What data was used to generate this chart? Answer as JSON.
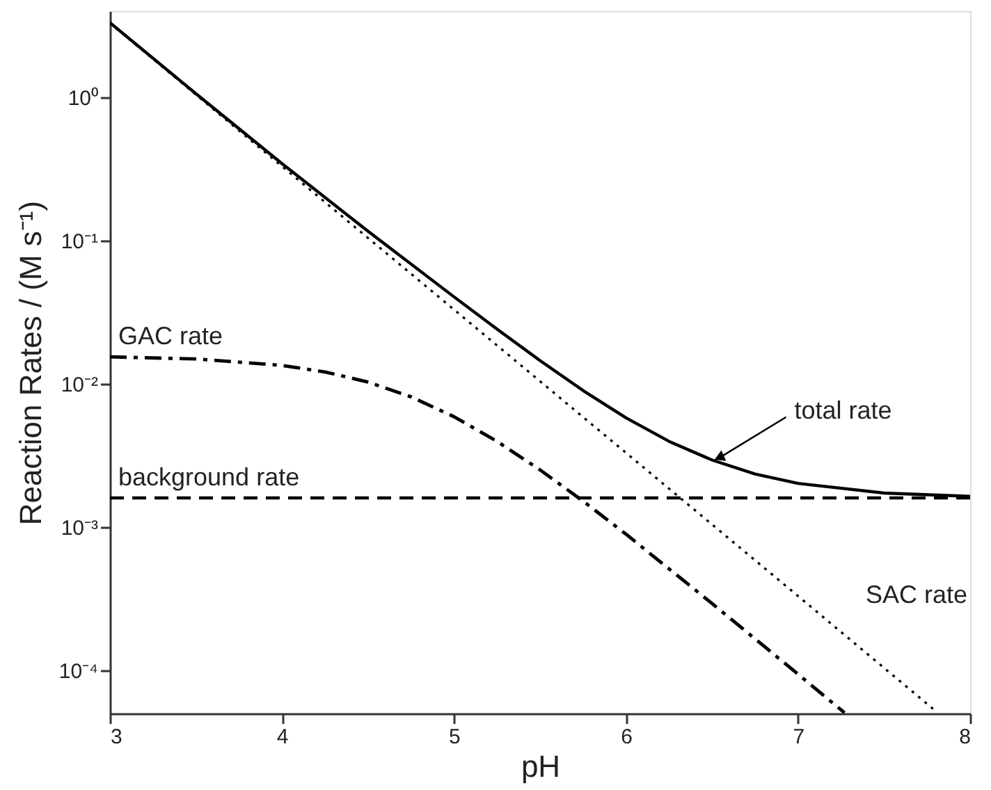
{
  "chart_data": {
    "type": "line",
    "xlabel": "pH",
    "ylabel": "Reaction Rates / (M s⁻¹)",
    "log": "y",
    "grid": false,
    "marker": "none",
    "xlim": [
      3,
      8
    ],
    "xticks": [
      3,
      4,
      5,
      6,
      7,
      8
    ],
    "ylim": [
      5e-05,
      4
    ],
    "yticks": [
      {
        "value": 0.0001,
        "label": "10⁻⁴"
      },
      {
        "value": 0.001,
        "label": "10⁻³"
      },
      {
        "value": 0.01,
        "label": "10⁻²"
      },
      {
        "value": 0.1,
        "label": "10⁻¹"
      },
      {
        "value": 1,
        "label": "10⁰"
      }
    ],
    "series": [
      {
        "name": "total rate",
        "color": "#000000",
        "line_style": "solid",
        "x": [
          3,
          3.5,
          4,
          4.5,
          5,
          5.25,
          5.5,
          5.75,
          6,
          6.25,
          6.5,
          6.75,
          7,
          7.5,
          8
        ],
        "values": [
          3.317,
          1.06,
          0.345,
          0.1163,
          0.0405,
          0.0241,
          0.01455,
          0.00899,
          0.00579,
          0.00397,
          0.00294,
          0.00235,
          0.00202,
          0.00173,
          0.00164
        ]
      },
      {
        "name": "SAC rate",
        "color": "#000000",
        "line_style": "dotted",
        "x": [
          3,
          4,
          5,
          6,
          7,
          7.8
        ],
        "values": [
          3.3,
          0.33,
          0.033,
          0.0033,
          0.00033,
          5.2e-05
        ]
      },
      {
        "name": "GAC rate",
        "color": "#000000",
        "line_style": "dashdot",
        "x": [
          3,
          3.5,
          4,
          4.25,
          4.5,
          4.75,
          5,
          5.25,
          5.5,
          5.75,
          6,
          6.5,
          7,
          7.27
        ],
        "values": [
          0.01544,
          0.01492,
          0.01346,
          0.01212,
          0.0103,
          0.00812,
          0.0059,
          0.00397,
          0.00251,
          0.00152,
          0.000892,
          0.000293,
          9.4e-05,
          5.06e-05
        ]
      },
      {
        "name": "background rate",
        "color": "#000000",
        "line_style": "dashed",
        "x": [
          3,
          8
        ],
        "values": [
          0.0016,
          0.0016
        ]
      }
    ]
  }
}
